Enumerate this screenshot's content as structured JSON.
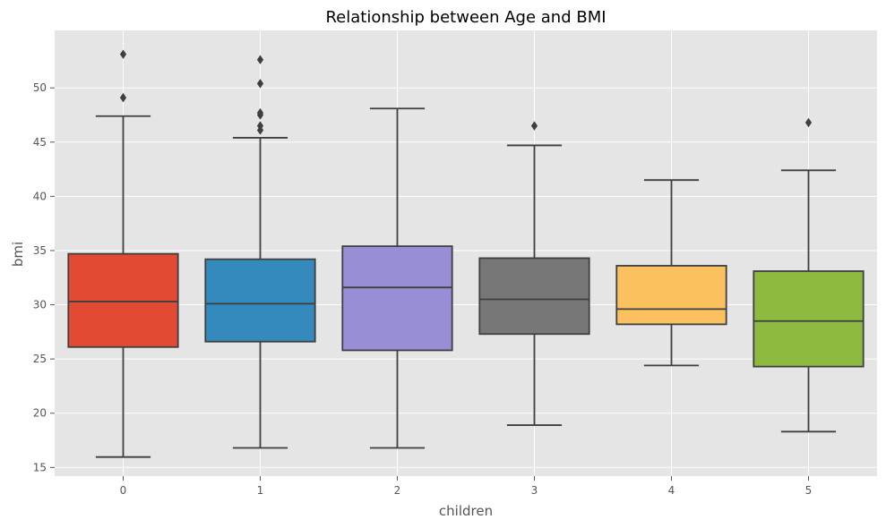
{
  "chart_data": {
    "type": "box",
    "title": "Relationship between Age and BMI",
    "xlabel": "children",
    "ylabel": "bmi",
    "ylim": [
      14.2,
      55.3
    ],
    "yticks": [
      15,
      20,
      25,
      30,
      35,
      40,
      45,
      50
    ],
    "grid": true,
    "categories": [
      "0",
      "1",
      "2",
      "3",
      "4",
      "5"
    ],
    "boxes": [
      {
        "category": "0",
        "color": "#E24A33",
        "whisker_low": 15.96,
        "q1": 26.1,
        "median": 30.3,
        "q3": 34.7,
        "whisker_high": 47.4,
        "outliers": [
          49.1,
          53.1
        ]
      },
      {
        "category": "1",
        "color": "#348ABD",
        "whisker_low": 16.8,
        "q1": 26.6,
        "median": 30.1,
        "q3": 34.2,
        "whisker_high": 45.4,
        "outliers": [
          46.1,
          46.5,
          47.5,
          47.7,
          50.4,
          52.6
        ]
      },
      {
        "category": "2",
        "color": "#988ED5",
        "whisker_low": 16.8,
        "q1": 25.8,
        "median": 31.6,
        "q3": 35.4,
        "whisker_high": 48.1,
        "outliers": []
      },
      {
        "category": "3",
        "color": "#777777",
        "whisker_low": 18.9,
        "q1": 27.3,
        "median": 30.5,
        "q3": 34.3,
        "whisker_high": 44.7,
        "outliers": [
          46.5
        ]
      },
      {
        "category": "4",
        "color": "#FBC15E",
        "whisker_low": 24.4,
        "q1": 28.2,
        "median": 29.6,
        "q3": 33.6,
        "whisker_high": 41.5,
        "outliers": []
      },
      {
        "category": "5",
        "color": "#8EBA42",
        "whisker_low": 18.3,
        "q1": 24.3,
        "median": 28.5,
        "q3": 33.1,
        "whisker_high": 42.4,
        "outliers": [
          46.8
        ]
      }
    ]
  }
}
